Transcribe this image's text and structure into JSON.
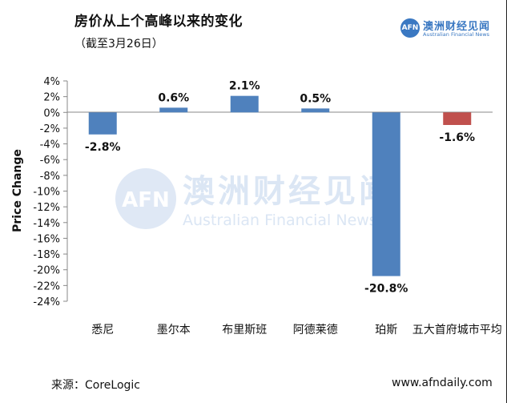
{
  "header": {
    "title": "房价从上个高峰以来的变化",
    "subtitle": "（截至3月26日）"
  },
  "logo": {
    "mark": "AFN",
    "name_cn": "澳洲财经见闻",
    "name_en": "Australian Financial News"
  },
  "watermark": {
    "mark": "AFN",
    "name_cn": "澳洲财经见闻",
    "name_en": "Australian Financial News"
  },
  "footer": {
    "source": "来源：CoreLogic",
    "site": "www.afndaily.com"
  },
  "colors": {
    "bar_blue": "#4f81bd",
    "bar_red": "#c0504d",
    "watermark": "#dbe6f4"
  },
  "chart_data": {
    "type": "bar",
    "title": "房价从上个高峰以来的变化",
    "subtitle": "（截至3月26日）",
    "xlabel": "",
    "ylabel": "Price Change",
    "ylim": [
      -24,
      4
    ],
    "ytick_step": 2,
    "grid": false,
    "categories": [
      "悉尼",
      "墨尔本",
      "布里斯班",
      "阿德莱德",
      "珀斯",
      "五大首府城市平均"
    ],
    "values": [
      -2.8,
      0.6,
      2.1,
      0.5,
      -20.8,
      -1.6
    ],
    "data_labels": [
      "-2.8%",
      "0.6%",
      "2.1%",
      "0.5%",
      "-20.8%",
      "-1.6%"
    ],
    "bar_colors": [
      "#4f81bd",
      "#4f81bd",
      "#4f81bd",
      "#4f81bd",
      "#4f81bd",
      "#c0504d"
    ]
  }
}
